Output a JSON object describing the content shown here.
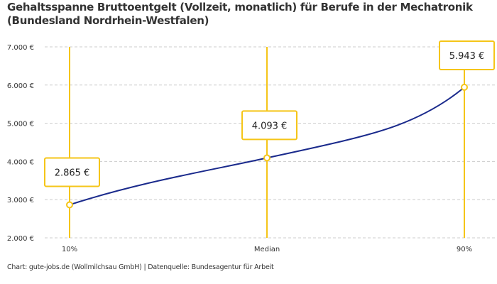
{
  "chart_data": {
    "type": "line",
    "title": "Gehaltsspanne Bruttoentgelt (Vollzeit, monatlich) für Berufe in der Mechatronik (Bundesland Nordrhein-Westfalen)",
    "categories": [
      "10%",
      "Median",
      "90%"
    ],
    "values": [
      2865,
      4093,
      5943
    ],
    "data_labels": [
      "2.865 €",
      "4.093 €",
      "5.943 €"
    ],
    "ylim": [
      2000,
      7000
    ],
    "yticks": [
      2000,
      3000,
      4000,
      5000,
      6000,
      7000
    ],
    "ytick_labels": [
      "2.000 €",
      "3.000 €",
      "4.000 €",
      "5.000 €",
      "6.000 €",
      "7.000 €"
    ],
    "grid": true,
    "line_color": "#1a2a8c",
    "accent_color": "#f5c518"
  },
  "footer": "Chart: gute-jobs.de (Wollmilchsau GmbH) | Datenquelle: Bundesagentur für Arbeit"
}
